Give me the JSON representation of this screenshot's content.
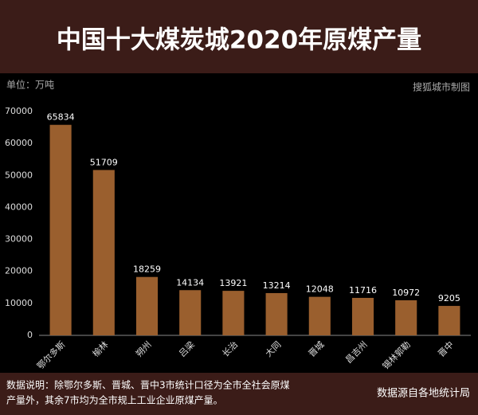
{
  "chart_data": {
    "type": "bar",
    "title": "中国十大煤炭城2020年原煤产量",
    "unit_label": "单位：万吨",
    "credit": "搜狐城市制图",
    "categories": [
      "鄂尔多斯",
      "榆林",
      "朔州",
      "吕梁",
      "长治",
      "大同",
      "晋城",
      "昌吉州",
      "锡林郭勒",
      "晋中"
    ],
    "values": [
      65834,
      51709,
      18259,
      14134,
      13921,
      13214,
      12048,
      11716,
      10972,
      9205
    ],
    "color": "#9a5f2e",
    "ylim": [
      0,
      70000
    ],
    "yticks": [
      0,
      10000,
      20000,
      30000,
      40000,
      50000,
      60000,
      70000
    ],
    "grid": false,
    "notes": [
      "数据说明：除鄂尔多斯、晋城、晋中3市统计口径为全市全社会原煤",
      "产量外，其余7市均为全市规上工业企业原煤产量。"
    ],
    "source": "数据源自各地统计局"
  }
}
